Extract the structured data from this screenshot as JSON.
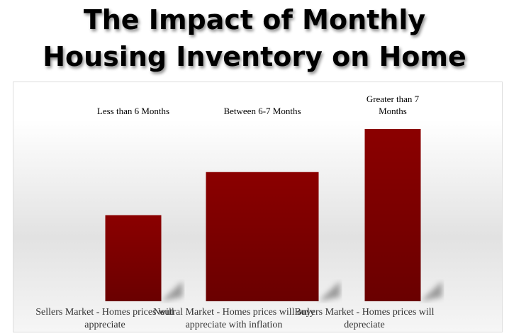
{
  "chart_data": {
    "type": "bar",
    "title": "The Impact of Monthly Housing Inventory on Home Prices",
    "categories": [
      "Less than 6 Months",
      "Between 6-7 Months",
      "Greater than 7 Months"
    ],
    "descriptions": [
      "Sellers Market - Homes prices will appreciate",
      "Neutral Market - Homes prices will only appreciate with inflation",
      "Buyers Market - Homes prices will depreciate"
    ],
    "values": [
      2,
      3,
      4
    ],
    "ylim": [
      0,
      4
    ],
    "color": "#8b0000"
  }
}
